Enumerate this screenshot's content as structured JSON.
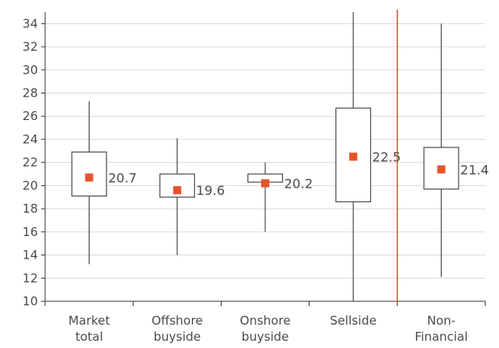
{
  "chart_data": {
    "type": "box",
    "title": "",
    "xlabel": "",
    "ylabel": "",
    "ylim": [
      10,
      35
    ],
    "yticks": [
      10,
      12,
      14,
      16,
      18,
      20,
      22,
      24,
      26,
      28,
      30,
      32,
      34
    ],
    "grid": "horizontal",
    "legend": "none",
    "categories": [
      [
        "Market",
        "total"
      ],
      [
        "Offshore",
        "buyside"
      ],
      [
        "Onshore",
        "buyside"
      ],
      [
        "Sellside"
      ],
      [
        "Non-",
        "Financial"
      ]
    ],
    "boxes": [
      {
        "min": 13.2,
        "q1": 19.1,
        "q3": 22.9,
        "max": 27.3,
        "mean": 20.7,
        "label": "20.7"
      },
      {
        "min": 14.0,
        "q1": 19.0,
        "q3": 21.0,
        "max": 24.1,
        "mean": 19.6,
        "label": "19.6"
      },
      {
        "min": 16.0,
        "q1": 20.3,
        "q3": 21.0,
        "max": 22.0,
        "mean": 20.2,
        "label": "20.2"
      },
      {
        "min": 10.0,
        "q1": 18.6,
        "q3": 26.7,
        "max": 35.0,
        "mean": 22.5,
        "label": "22.5"
      },
      {
        "min": 12.1,
        "q1": 19.7,
        "q3": 23.3,
        "max": 34.0,
        "mean": 21.4,
        "label": "21.4"
      }
    ],
    "divider_after_category": 4,
    "colors": {
      "mean_marker": "#e8532a",
      "divider": "#d9542b",
      "box_stroke": "#4d4d4d",
      "whisker": "#4d4d4d",
      "grid": "#d9d9d9",
      "axis": "#333333",
      "text": "#4a4a4a"
    }
  }
}
